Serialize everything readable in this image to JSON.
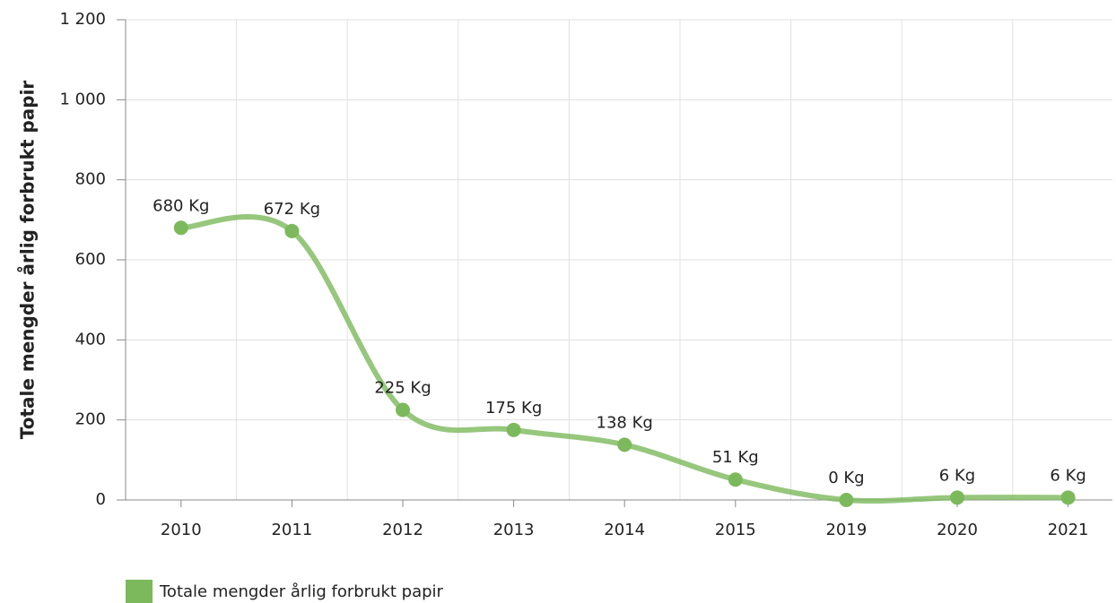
{
  "chart_data": {
    "type": "line",
    "y_label": "Totale mengder årlig forbrukt papir",
    "categories": [
      "2010",
      "2011",
      "2012",
      "2013",
      "2014",
      "2015",
      "2019",
      "2020",
      "2021"
    ],
    "series": [
      {
        "name": "Totale mengder årlig forbrukt papir",
        "color": "#7cb95c",
        "values": [
          680,
          672,
          225,
          175,
          138,
          51,
          0,
          6,
          6
        ],
        "value_labels": [
          "680 Kg",
          "672 Kg",
          "225 Kg",
          "175 Kg",
          "138 Kg",
          "51 Kg",
          "0 Kg",
          "6 Kg",
          "6 Kg"
        ]
      }
    ],
    "ylim": [
      0,
      1200
    ],
    "yticks": [
      0,
      200,
      400,
      600,
      800,
      {
        "value": 1000,
        "label": "1 000"
      },
      {
        "value": 1200,
        "label": "1 200"
      }
    ],
    "grid": true,
    "legend": "bottom"
  }
}
